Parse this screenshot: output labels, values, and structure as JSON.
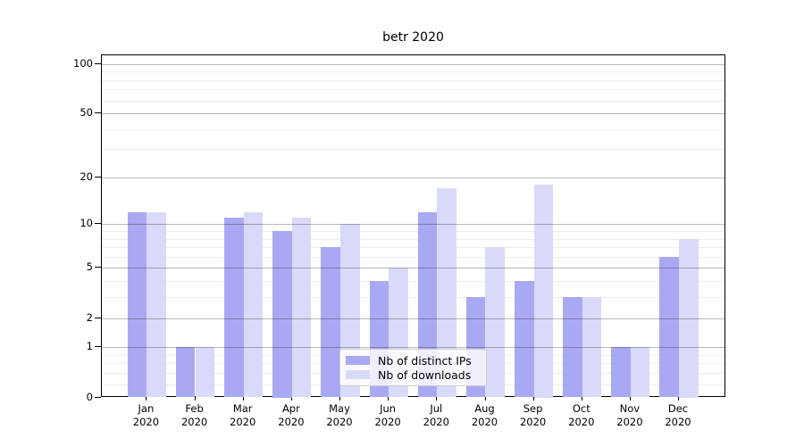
{
  "title": "betr 2020",
  "chart_data": {
    "type": "bar",
    "title": "betr 2020",
    "categories": [
      "Jan",
      "Feb",
      "Mar",
      "Apr",
      "May",
      "Jun",
      "Jul",
      "Aug",
      "Sep",
      "Oct",
      "Nov",
      "Dec"
    ],
    "category_year": "2020",
    "series": [
      {
        "name": "Nb of distinct IPs",
        "color": "#a9a9f3",
        "values": [
          12,
          1,
          11,
          9,
          7,
          4,
          12,
          3,
          4,
          3,
          1,
          6
        ]
      },
      {
        "name": "Nb of downloads",
        "color": "#d9daf9",
        "values": [
          12,
          1,
          12,
          11,
          10,
          5,
          17,
          7,
          18,
          3,
          1,
          8
        ]
      }
    ],
    "y_scale": "log10(1+y)",
    "y_major_ticks": [
      0,
      1,
      2,
      5,
      10,
      20,
      50,
      100
    ],
    "y_minor_ticks": [
      0.2,
      0.4,
      0.6,
      0.8,
      3,
      4,
      6,
      7,
      8,
      9,
      30,
      40,
      60,
      70,
      80,
      90
    ],
    "ylim": [
      0,
      113
    ],
    "xlabel": "",
    "ylabel": "",
    "grid": true,
    "legend_position": "lower center",
    "legend_entries": [
      "Nb of distinct IPs",
      "Nb of downloads"
    ]
  },
  "colors": {
    "series_ips": "#a9a9f3",
    "series_downloads": "#d9daf9",
    "major_grid": "#b9b9b9",
    "minor_grid": "#ededed",
    "axis": "#000000",
    "legend_border": "#cccccc"
  }
}
